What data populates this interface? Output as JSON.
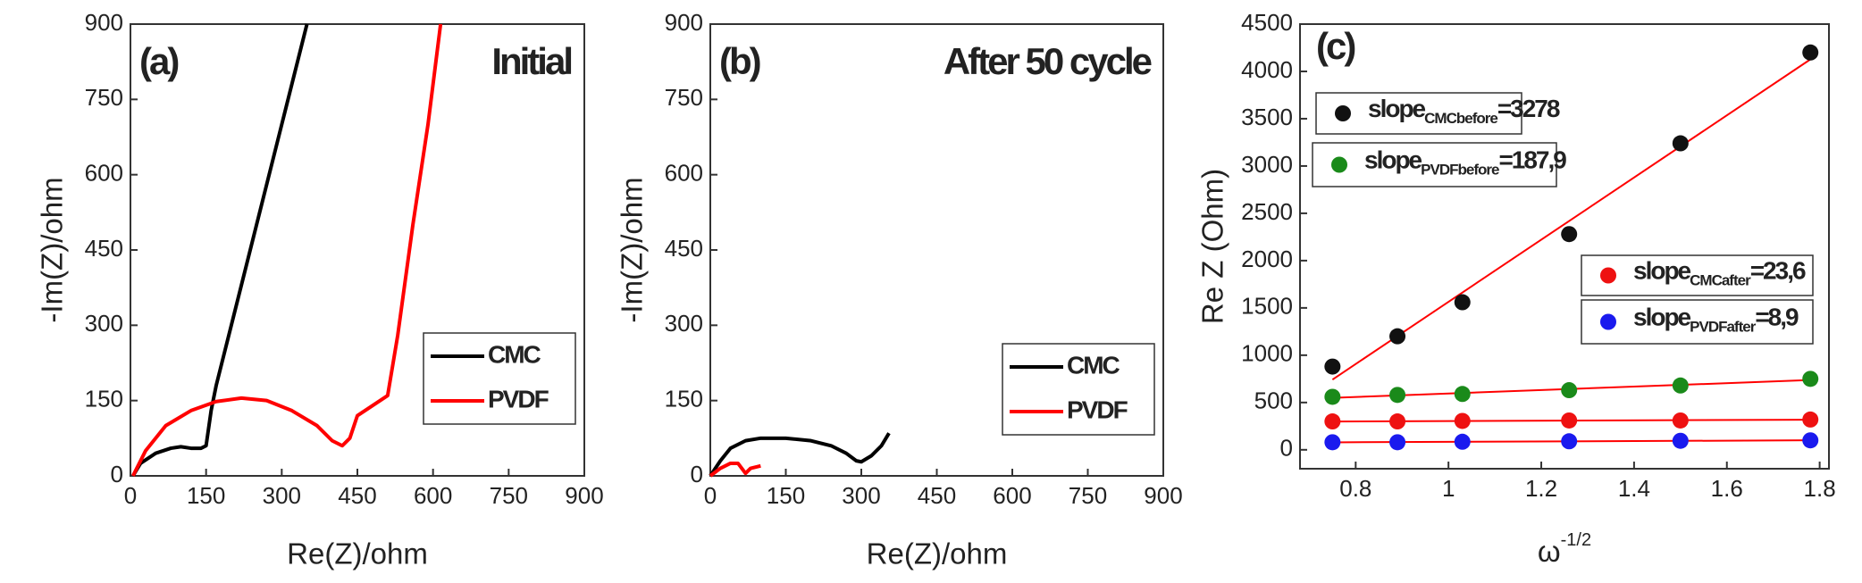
{
  "chart_data": [
    {
      "type": "line",
      "title": "(a)",
      "annotation": "Initial",
      "xlabel": "Re(Z)/ohm",
      "ylabel": "-Im(Z)/ohm",
      "xlim": [
        0,
        900
      ],
      "ylim": [
        0,
        900
      ],
      "xticks": [
        0,
        150,
        300,
        450,
        600,
        750,
        900
      ],
      "yticks": [
        0,
        150,
        300,
        450,
        600,
        750,
        900
      ],
      "legend": "lower right",
      "series": [
        {
          "name": "CMC",
          "color": "#000000",
          "x": [
            5,
            20,
            50,
            80,
            100,
            120,
            140,
            150,
            160,
            170,
            200,
            250,
            300,
            350
          ],
          "values": [
            0,
            25,
            45,
            55,
            58,
            55,
            55,
            60,
            130,
            180,
            300,
            500,
            700,
            900
          ]
        },
        {
          "name": "PVDF",
          "color": "#ff0000",
          "x": [
            5,
            30,
            70,
            120,
            170,
            220,
            270,
            320,
            370,
            400,
            420,
            435,
            450,
            480,
            510,
            530,
            560,
            590,
            615
          ],
          "values": [
            0,
            50,
            100,
            130,
            148,
            155,
            150,
            130,
            100,
            70,
            60,
            75,
            120,
            140,
            160,
            280,
            500,
            700,
            900
          ]
        }
      ]
    },
    {
      "type": "line",
      "title": "(b)",
      "annotation": "After 50 cycle",
      "xlabel": "Re(Z)/ohm",
      "ylabel": "-Im(Z)/ohm",
      "xlim": [
        0,
        900
      ],
      "ylim": [
        0,
        900
      ],
      "xticks": [
        0,
        150,
        300,
        450,
        600,
        750,
        900
      ],
      "yticks": [
        0,
        150,
        300,
        450,
        600,
        750,
        900
      ],
      "legend": "lower right",
      "series": [
        {
          "name": "CMC",
          "color": "#000000",
          "x": [
            0,
            20,
            40,
            70,
            100,
            150,
            200,
            240,
            270,
            290,
            300,
            320,
            340,
            355
          ],
          "values": [
            0,
            30,
            55,
            70,
            75,
            75,
            70,
            60,
            45,
            30,
            28,
            40,
            60,
            85
          ]
        },
        {
          "name": "PVDF",
          "color": "#ff0000",
          "x": [
            0,
            20,
            40,
            55,
            70,
            80,
            100
          ],
          "values": [
            0,
            15,
            25,
            25,
            5,
            15,
            20
          ]
        }
      ]
    },
    {
      "type": "scatter",
      "title": "(c)",
      "xlabel": "ω",
      "xlabel_sup": "-1/2",
      "ylabel": "Re Z (Ohm)",
      "xlim": [
        0.68,
        1.82
      ],
      "ylim": [
        -200,
        4500
      ],
      "xticks": [
        0.8,
        1.0,
        1.2,
        1.4,
        1.6,
        1.8
      ],
      "yticks": [
        0,
        500,
        1000,
        1500,
        2000,
        2500,
        3000,
        3500,
        4000,
        4500
      ],
      "fit_color": "#ff0000",
      "x": [
        0.75,
        0.89,
        1.03,
        1.26,
        1.5,
        1.78
      ],
      "series": [
        {
          "name": "slope",
          "subscript": "CMCbefore",
          "slope": 3278,
          "slope_label": "=3278",
          "color": "#111111",
          "values": [
            880,
            1200,
            1560,
            2280,
            3240,
            4200
          ]
        },
        {
          "name": "slope",
          "subscript": "PVDFbefore",
          "slope": 187.9,
          "slope_label": "=187,9",
          "color": "#1a8a1a",
          "values": [
            560,
            580,
            590,
            630,
            680,
            750
          ]
        },
        {
          "name": "slope",
          "subscript": "CMCafter",
          "slope": 23.6,
          "slope_label": "=23,6",
          "color": "#ee1111",
          "values": [
            300,
            300,
            305,
            310,
            310,
            320
          ]
        },
        {
          "name": "slope",
          "subscript": "PVDFafter",
          "slope": 8.9,
          "slope_label": "=8,9",
          "color": "#1a1aee",
          "values": [
            80,
            80,
            85,
            90,
            95,
            100
          ]
        }
      ]
    }
  ]
}
